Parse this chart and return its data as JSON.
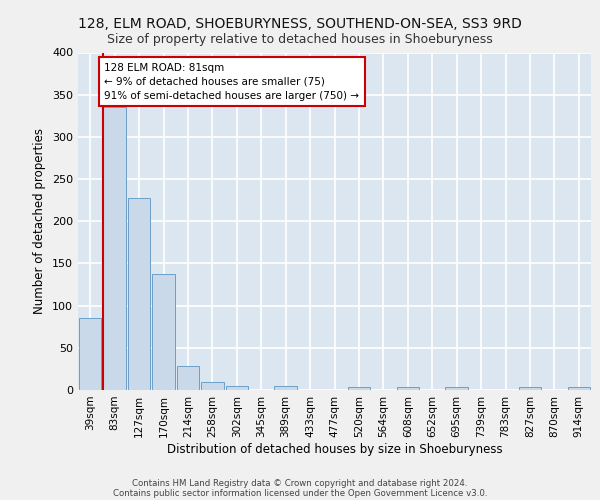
{
  "title1": "128, ELM ROAD, SHOEBURYNESS, SOUTHEND-ON-SEA, SS3 9RD",
  "title2": "Size of property relative to detached houses in Shoeburyness",
  "xlabel": "Distribution of detached houses by size in Shoeburyness",
  "ylabel": "Number of detached properties",
  "footer1": "Contains HM Land Registry data © Crown copyright and database right 2024.",
  "footer2": "Contains public sector information licensed under the Open Government Licence v3.0.",
  "categories": [
    "39sqm",
    "83sqm",
    "127sqm",
    "170sqm",
    "214sqm",
    "258sqm",
    "302sqm",
    "345sqm",
    "389sqm",
    "433sqm",
    "477sqm",
    "520sqm",
    "564sqm",
    "608sqm",
    "652sqm",
    "695sqm",
    "739sqm",
    "783sqm",
    "827sqm",
    "870sqm",
    "914sqm"
  ],
  "values": [
    85,
    335,
    228,
    137,
    28,
    10,
    5,
    0,
    5,
    0,
    0,
    3,
    0,
    3,
    0,
    4,
    0,
    0,
    3,
    0,
    3
  ],
  "bar_color": "#c9d9e9",
  "bar_edge_color": "#6aa0c8",
  "marker_line_color": "#cc0000",
  "annotation_text": "128 ELM ROAD: 81sqm\n← 9% of detached houses are smaller (75)\n91% of semi-detached houses are larger (750) →",
  "annotation_box_color": "#ffffff",
  "annotation_box_edge_color": "#cc0000",
  "ylim": [
    0,
    400
  ],
  "yticks": [
    0,
    50,
    100,
    150,
    200,
    250,
    300,
    350,
    400
  ],
  "background_color": "#dce6f0",
  "grid_color": "#ffffff",
  "fig_background": "#f0f0f0"
}
